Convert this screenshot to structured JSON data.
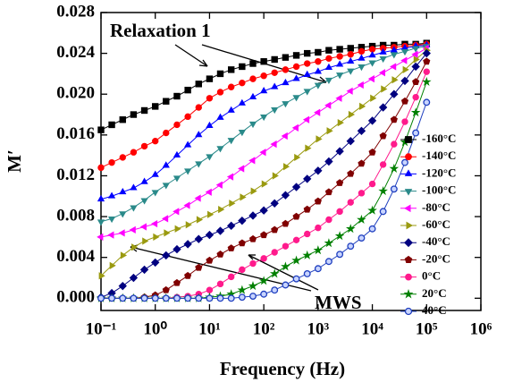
{
  "chart_data": {
    "type": "line",
    "x_label": "Frequency (Hz)",
    "y_label": "M′",
    "x_scale": "log",
    "xlim": [
      0.1,
      1000000
    ],
    "ylim": [
      -0.0012,
      0.028
    ],
    "xticks": [
      {
        "value": 0.1,
        "label": "10⁻¹"
      },
      {
        "value": 1,
        "label": "10⁰"
      },
      {
        "value": 10,
        "label": "10¹"
      },
      {
        "value": 100,
        "label": "10²"
      },
      {
        "value": 1000,
        "label": "10³"
      },
      {
        "value": 10000,
        "label": "10⁴"
      },
      {
        "value": 100000,
        "label": "10⁵"
      },
      {
        "value": 1000000,
        "label": "10⁶"
      }
    ],
    "yticks": [
      {
        "value": 0,
        "label": "0.000"
      },
      {
        "value": 0.004,
        "label": "0.004"
      },
      {
        "value": 0.008,
        "label": "0.008"
      },
      {
        "value": 0.012,
        "label": "0.012"
      },
      {
        "value": 0.016,
        "label": "0.016"
      },
      {
        "value": 0.02,
        "label": "0.020"
      },
      {
        "value": 0.024,
        "label": "0.024"
      },
      {
        "value": 0.028,
        "label": "0.028"
      }
    ],
    "legend": "right",
    "annotations": [
      "Relaxation 1",
      "MWS"
    ],
    "x": [
      0.1,
      0.158,
      0.251,
      0.398,
      0.631,
      1,
      1.58,
      2.51,
      3.98,
      6.31,
      10,
      15.8,
      25.1,
      39.8,
      63.1,
      100,
      158,
      251,
      398,
      631,
      1000,
      1580,
      2510,
      3980,
      6310,
      10000,
      15800,
      25100,
      39800,
      63100,
      100000
    ],
    "series": [
      {
        "name": "-160°C",
        "color": "#000000",
        "marker": "square",
        "values": [
          0.0165,
          0.017,
          0.0175,
          0.018,
          0.0184,
          0.0188,
          0.0193,
          0.0198,
          0.0204,
          0.021,
          0.0215,
          0.022,
          0.0224,
          0.0227,
          0.023,
          0.0232,
          0.0234,
          0.0236,
          0.0238,
          0.024,
          0.0241,
          0.0243,
          0.0244,
          0.0245,
          0.0246,
          0.0247,
          0.0248,
          0.0248,
          0.0249,
          0.0249,
          0.025
        ]
      },
      {
        "name": "-140°C",
        "color": "#ff0000",
        "marker": "circle",
        "values": [
          0.0128,
          0.0133,
          0.0138,
          0.0143,
          0.0149,
          0.0154,
          0.0162,
          0.017,
          0.0178,
          0.0187,
          0.0196,
          0.0202,
          0.0207,
          0.0211,
          0.0215,
          0.0218,
          0.0221,
          0.0224,
          0.0227,
          0.023,
          0.0232,
          0.0235,
          0.0237,
          0.0239,
          0.0242,
          0.0244,
          0.0245,
          0.0246,
          0.0247,
          0.0248,
          0.0249
        ]
      },
      {
        "name": "-120°C",
        "color": "#0000ff",
        "marker": "triangle-up",
        "values": [
          0.0097,
          0.01,
          0.0104,
          0.0108,
          0.0114,
          0.0121,
          0.013,
          0.014,
          0.015,
          0.016,
          0.0169,
          0.0177,
          0.0184,
          0.0191,
          0.0197,
          0.0203,
          0.0207,
          0.0211,
          0.0215,
          0.0219,
          0.0222,
          0.0226,
          0.0229,
          0.0232,
          0.0235,
          0.0238,
          0.0241,
          0.0243,
          0.0245,
          0.0247,
          0.0248
        ]
      },
      {
        "name": "-100°C",
        "color": "#2a8a8a",
        "marker": "triangle-down",
        "values": [
          0.0075,
          0.0078,
          0.0083,
          0.0089,
          0.0096,
          0.0104,
          0.0111,
          0.0118,
          0.0125,
          0.0132,
          0.0139,
          0.0147,
          0.0155,
          0.0163,
          0.0171,
          0.0178,
          0.0185,
          0.0191,
          0.0197,
          0.0203,
          0.0209,
          0.0214,
          0.0219,
          0.0223,
          0.0227,
          0.0231,
          0.0235,
          0.0239,
          0.0242,
          0.0245,
          0.0247
        ]
      },
      {
        "name": "-80°C",
        "color": "#ff00ff",
        "marker": "triangle-left",
        "values": [
          0.006,
          0.0062,
          0.0064,
          0.0067,
          0.007,
          0.0073,
          0.0078,
          0.0085,
          0.0091,
          0.0098,
          0.0104,
          0.0111,
          0.0119,
          0.0127,
          0.0135,
          0.0143,
          0.0151,
          0.0159,
          0.0167,
          0.0175,
          0.0182,
          0.0189,
          0.0196,
          0.0203,
          0.0209,
          0.0215,
          0.0221,
          0.0227,
          0.0233,
          0.0239,
          0.0245
        ]
      },
      {
        "name": "-60°C",
        "color": "#9a9a10",
        "marker": "triangle-right",
        "values": [
          0.0022,
          0.0032,
          0.0042,
          0.005,
          0.0056,
          0.006,
          0.0064,
          0.0068,
          0.0072,
          0.0077,
          0.0082,
          0.0087,
          0.0093,
          0.0099,
          0.0105,
          0.0112,
          0.012,
          0.0129,
          0.0138,
          0.0147,
          0.0156,
          0.0164,
          0.0172,
          0.018,
          0.0188,
          0.0196,
          0.0205,
          0.0214,
          0.0224,
          0.0234,
          0.0243
        ]
      },
      {
        "name": "-40°C",
        "color": "#000080",
        "marker": "diamond",
        "values": [
          0.0001,
          0.0005,
          0.0012,
          0.002,
          0.0028,
          0.0035,
          0.0042,
          0.0048,
          0.0053,
          0.0058,
          0.0062,
          0.0066,
          0.0071,
          0.0076,
          0.0081,
          0.0086,
          0.0093,
          0.0101,
          0.0109,
          0.0117,
          0.0125,
          0.0134,
          0.0144,
          0.0154,
          0.0164,
          0.0174,
          0.0187,
          0.02,
          0.0213,
          0.0227,
          0.024
        ]
      },
      {
        "name": "-20°C",
        "color": "#800000",
        "marker": "pentagon",
        "values": [
          0,
          0,
          0,
          0,
          0.0001,
          0.0003,
          0.0008,
          0.0015,
          0.0022,
          0.003,
          0.0037,
          0.0043,
          0.0049,
          0.0054,
          0.0058,
          0.0062,
          0.0067,
          0.0073,
          0.008,
          0.0087,
          0.0095,
          0.0104,
          0.0113,
          0.0122,
          0.0132,
          0.0143,
          0.0159,
          0.0175,
          0.0193,
          0.0212,
          0.0232
        ]
      },
      {
        "name": "0°C",
        "color": "#ff1a8c",
        "marker": "circle",
        "values": [
          0,
          0,
          0,
          0,
          0,
          0,
          0,
          0.0001,
          0.0002,
          0.0004,
          0.0008,
          0.0014,
          0.0021,
          0.0028,
          0.0034,
          0.0039,
          0.0045,
          0.0051,
          0.0057,
          0.0063,
          0.0069,
          0.0077,
          0.0085,
          0.0094,
          0.0103,
          0.0112,
          0.0131,
          0.0151,
          0.0173,
          0.0197,
          0.0222
        ]
      },
      {
        "name": "20°C",
        "color": "#008000",
        "marker": "star",
        "values": [
          0,
          0,
          0,
          0,
          0,
          0,
          0,
          0,
          0,
          0,
          0.0001,
          0.0002,
          0.0004,
          0.0008,
          0.0012,
          0.0017,
          0.0024,
          0.0031,
          0.0037,
          0.0042,
          0.0047,
          0.0054,
          0.0061,
          0.0068,
          0.0077,
          0.0086,
          0.0105,
          0.0127,
          0.0153,
          0.0182,
          0.0212
        ]
      },
      {
        "name": "40°C",
        "color": "#1f3fbf",
        "marker": "circle-open",
        "values": [
          0,
          0,
          0,
          0,
          0,
          0,
          0,
          0,
          0,
          0,
          0,
          0,
          0,
          0.0001,
          0.0002,
          0.0004,
          0.0008,
          0.0013,
          0.0019,
          0.0024,
          0.0029,
          0.0036,
          0.0043,
          0.0051,
          0.0059,
          0.0068,
          0.0085,
          0.0107,
          0.0133,
          0.0162,
          0.0192
        ]
      }
    ]
  }
}
